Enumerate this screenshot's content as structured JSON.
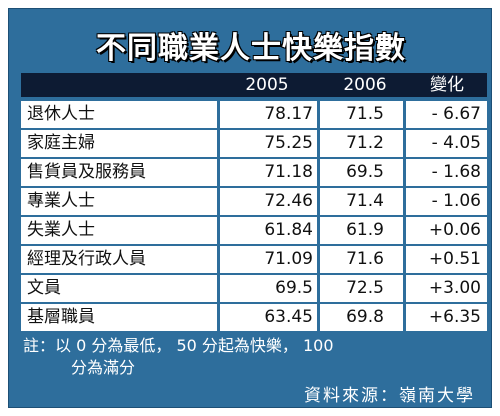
{
  "title": "不同職業人士快樂指數",
  "columns": [
    "2005",
    "2006",
    "變化"
  ],
  "chart_data": {
    "type": "table",
    "title": "不同職業人士快樂指數",
    "columns": [
      "2005",
      "2006",
      "變化"
    ],
    "rows": [
      {
        "label": "退休人士",
        "v2005": "78.17",
        "v2006": "71.5",
        "change": "- 6.67"
      },
      {
        "label": "家庭主婦",
        "v2005": "75.25",
        "v2006": "71.2",
        "change": "- 4.05"
      },
      {
        "label": "售貨員及服務員",
        "v2005": "71.18",
        "v2006": "69.5",
        "change": "- 1.68"
      },
      {
        "label": "專業人士",
        "v2005": "72.46",
        "v2006": "71.4",
        "change": "- 1.06"
      },
      {
        "label": "失業人士",
        "v2005": "61.84",
        "v2006": "61.9",
        "change": "+0.06"
      },
      {
        "label": "經理及行政人員",
        "v2005": "71.09",
        "v2006": "71.6",
        "change": "+0.51"
      },
      {
        "label": "文員",
        "v2005": "69.5",
        "v2006": "72.5",
        "change": "+3.00"
      },
      {
        "label": "基層職員",
        "v2005": "63.45",
        "v2006": "69.8",
        "change": "+6.35"
      }
    ]
  },
  "note": {
    "line1": "註：以 0 分為最低， 50 分起為快樂， 100",
    "line2": "分為滿分"
  },
  "source": "資料來源：嶺南大學",
  "colors": {
    "frame": "#2e6e9c",
    "header_bar": "#0d1b33",
    "row_bg": "#ffffff"
  }
}
